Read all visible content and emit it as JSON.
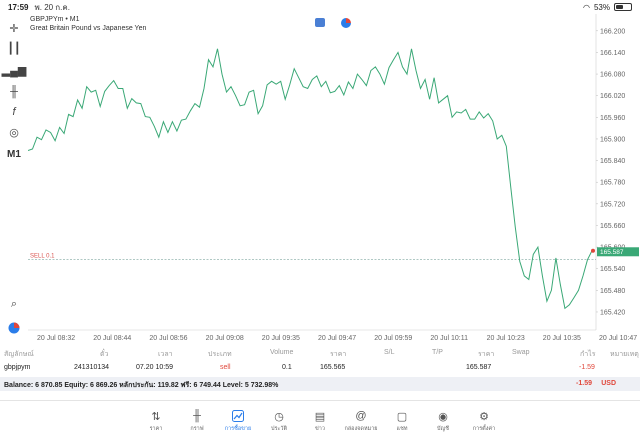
{
  "status": {
    "time": "17:59",
    "date": "พ. 20 ก.ค.",
    "battery": "53%"
  },
  "chart": {
    "symbol_line": "GBPJPYm • M1",
    "description": "Great Britain Pound vs Japanese Yen",
    "timeframe_tool": "M1",
    "sell_label": "SELL 0.1",
    "current_price": "165.587",
    "line_color": "#3aa876"
  },
  "chart_data": {
    "type": "line",
    "y_ticks": [
      "166.200",
      "166.140",
      "166.080",
      "166.020",
      "165.960",
      "165.900",
      "165.840",
      "165.780",
      "165.720",
      "165.660",
      "165.600",
      "165.540",
      "165.480",
      "165.420"
    ],
    "x_ticks": [
      "20 Jul 08:32",
      "20 Jul 08:44",
      "20 Jul 08:56",
      "20 Jul 09:08",
      "20 Jul 09:35",
      "20 Jul 09:47",
      "20 Jul 09:59",
      "20 Jul 10:11",
      "20 Jul 10:23",
      "20 Jul 10:35",
      "20 Jul 10:47"
    ],
    "ylim": [
      165.37,
      166.23
    ],
    "sell_level": 165.565,
    "y": [
      165.868,
      165.872,
      165.905,
      165.898,
      165.925,
      165.918,
      165.895,
      165.932,
      165.915,
      165.968,
      165.962,
      166.008,
      165.985,
      166.045,
      166.03,
      166.035,
      165.99,
      166.032,
      166.048,
      166.062,
      166.04,
      166.04,
      165.985,
      166.012,
      166.0,
      165.998,
      165.962,
      165.96,
      165.935,
      165.905,
      165.948,
      165.918,
      165.948,
      165.922,
      165.952,
      165.955,
      165.978,
      165.998,
      165.988,
      166.04,
      166.12,
      166.1,
      166.15,
      166.08,
      166.03,
      166.045,
      166.02,
      165.992,
      165.995,
      166.03,
      166.035,
      165.97,
      165.992,
      166.05,
      166.06,
      166.052,
      166.06,
      166.01,
      166.05,
      166.095,
      166.07,
      166.045,
      166.04,
      166.065,
      166.075,
      166.045,
      166.06,
      166.028,
      166.032,
      166.048,
      166.022,
      166.058,
      166.04,
      166.08,
      166.065,
      166.048,
      166.09,
      166.1,
      166.08,
      166.052,
      166.098,
      166.12,
      166.14,
      166.1,
      166.08,
      166.15,
      166.09,
      166.04,
      166.065,
      166.01,
      166.07,
      166.0,
      166.01,
      166.02,
      165.96,
      165.975,
      165.972,
      165.982,
      165.955,
      165.955,
      165.975,
      165.958,
      165.97,
      165.95,
      165.9,
      165.91,
      165.88,
      165.765,
      165.655,
      165.56,
      165.52,
      165.51,
      165.58,
      165.6,
      165.52,
      165.45,
      165.48,
      165.57,
      165.495,
      165.43,
      165.44,
      165.46,
      165.48,
      165.52,
      165.565,
      165.59
    ]
  },
  "trade_table": {
    "headers": [
      "สัญลักษณ์",
      "ตั๋ว",
      "เวลา",
      "ประเภท",
      "Volume",
      "ราคา",
      "S/L",
      "T/P",
      "ราคา",
      "Swap",
      "กำไร",
      "หมายเหตุ"
    ],
    "row": {
      "symbol": "gbpjpym",
      "ticket": "241310134",
      "time": "07.20 10:59",
      "type": "sell",
      "volume": "0.1",
      "open_price": "165.565",
      "price": "165.587",
      "profit": "-1.59"
    }
  },
  "balance": {
    "text": "Balance: 6 870.85 Equity: 6 869.26 หลักประกัน: 119.82 ฟรี: 6 749.44 Level: 5 732.98%",
    "profit": "-1.59",
    "currency": "USD"
  },
  "nav": [
    {
      "label": "ราคา",
      "icon": "quotes-icon"
    },
    {
      "label": "กราฟ",
      "icon": "chart-icon"
    },
    {
      "label": "การซื้อขาย",
      "icon": "trade-icon"
    },
    {
      "label": "ประวัติ",
      "icon": "history-icon"
    },
    {
      "label": "ข่าว",
      "icon": "news-icon"
    },
    {
      "label": "กล่องจดหมาย",
      "icon": "mailbox-icon"
    },
    {
      "label": "แชท",
      "icon": "chat-icon"
    },
    {
      "label": "บัญชี",
      "icon": "account-icon"
    },
    {
      "label": "การตั้งค่า",
      "icon": "settings-icon"
    }
  ],
  "nav_active_index": 2
}
